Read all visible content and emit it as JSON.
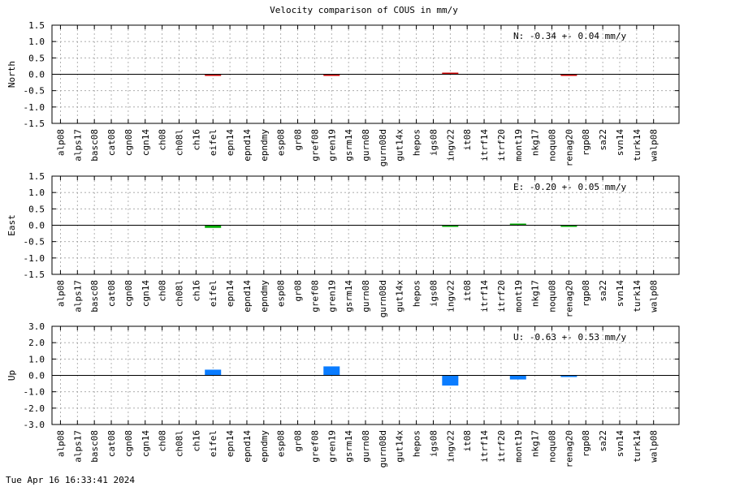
{
  "title": "Velocity comparison of COUS in mm/y",
  "footer_timestamp": "Tue Apr 16 16:33:41 2024",
  "chart_data": [
    {
      "type": "bar",
      "ylabel": "North",
      "ylim": [
        -1.5,
        1.5
      ],
      "yticks": [
        "1.5",
        "1.0",
        "0.5",
        "0.0",
        "-0.5",
        "-1.0",
        "-1.5"
      ],
      "grid": true,
      "color": "#cc0000",
      "annotation": "N: -0.34 +- 0.04 mm/y",
      "categories": [
        "alp08",
        "alps17",
        "basc08",
        "cat08",
        "cgn08",
        "cgn14",
        "ch08",
        "ch08l",
        "ch16",
        "eifel",
        "epn14",
        "epnd14",
        "epndmy",
        "esp08",
        "gr08",
        "gref08",
        "gren19",
        "gsrm14",
        "gurn08",
        "gurn08d",
        "gut14x",
        "hepos",
        "igs08",
        "ingv22",
        "it08",
        "itrf14",
        "itrf20",
        "mont19",
        "nkg17",
        "noqu08",
        "renag20",
        "rgp08",
        "sa22",
        "svn14",
        "turk14",
        "walp08"
      ],
      "values": [
        null,
        null,
        null,
        null,
        null,
        null,
        null,
        null,
        null,
        -0.04,
        null,
        null,
        null,
        null,
        null,
        null,
        -0.02,
        null,
        null,
        null,
        null,
        null,
        null,
        0.04,
        null,
        null,
        null,
        null,
        null,
        null,
        -0.04,
        null,
        null,
        null,
        null,
        null
      ]
    },
    {
      "type": "bar",
      "ylabel": "East",
      "ylim": [
        -1.5,
        1.5
      ],
      "yticks": [
        "1.5",
        "1.0",
        "0.5",
        "0.0",
        "-0.5",
        "-1.0",
        "-1.5"
      ],
      "grid": true,
      "color": "#00aa00",
      "annotation": "E: -0.20 +- 0.05 mm/y",
      "categories": [
        "alp08",
        "alps17",
        "basc08",
        "cat08",
        "cgn08",
        "cgn14",
        "ch08",
        "ch08l",
        "ch16",
        "eifel",
        "epn14",
        "epnd14",
        "epndmy",
        "esp08",
        "gr08",
        "gref08",
        "gren19",
        "gsrm14",
        "gurn08",
        "gurn08d",
        "gut14x",
        "hepos",
        "igs08",
        "ingv22",
        "it08",
        "itrf14",
        "itrf20",
        "mont19",
        "nkg17",
        "noqu08",
        "renag20",
        "rgp08",
        "sa22",
        "svn14",
        "turk14",
        "walp08"
      ],
      "values": [
        null,
        null,
        null,
        null,
        null,
        null,
        null,
        null,
        null,
        -0.08,
        null,
        null,
        null,
        null,
        null,
        null,
        null,
        null,
        null,
        null,
        null,
        null,
        null,
        -0.02,
        null,
        null,
        null,
        0.05,
        null,
        null,
        -0.02,
        null,
        null,
        null,
        null,
        null
      ]
    },
    {
      "type": "bar",
      "ylabel": "Up",
      "ylim": [
        -3.0,
        3.0
      ],
      "yticks": [
        "3.0",
        "2.0",
        "1.0",
        "0.0",
        "-1.0",
        "-2.0",
        "-3.0"
      ],
      "grid": true,
      "color": "#0a7cff",
      "annotation": "U: -0.63 +- 0.53 mm/y",
      "categories": [
        "alp08",
        "alps17",
        "basc08",
        "cat08",
        "cgn08",
        "cgn14",
        "ch08",
        "ch08l",
        "ch16",
        "eifel",
        "epn14",
        "epnd14",
        "epndmy",
        "esp08",
        "gr08",
        "gref08",
        "gren19",
        "gsrm14",
        "gurn08",
        "gurn08d",
        "gut14x",
        "hepos",
        "igs08",
        "ingv22",
        "it08",
        "itrf14",
        "itrf20",
        "mont19",
        "nkg17",
        "noqu08",
        "renag20",
        "rgp08",
        "sa22",
        "svn14",
        "turk14",
        "walp08"
      ],
      "values": [
        null,
        null,
        null,
        null,
        null,
        null,
        null,
        null,
        null,
        0.35,
        null,
        null,
        null,
        null,
        null,
        null,
        0.55,
        null,
        null,
        null,
        null,
        null,
        null,
        -0.62,
        null,
        null,
        null,
        -0.25,
        null,
        null,
        -0.08,
        null,
        null,
        null,
        null,
        null
      ]
    }
  ]
}
